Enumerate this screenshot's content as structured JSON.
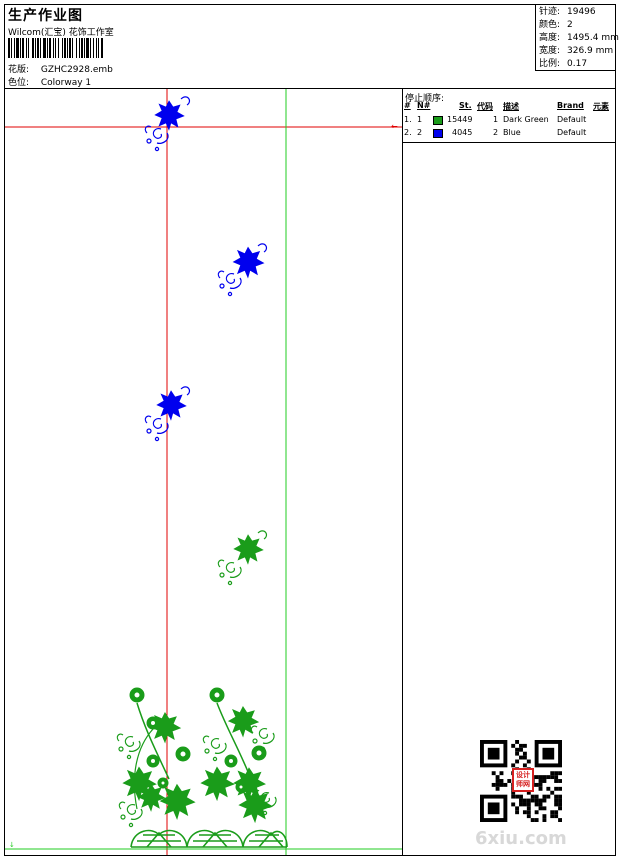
{
  "header": {
    "title": "生产作业图",
    "company": "Wilcom(汇宝) 花饰工作室",
    "design_label": "花版:",
    "design_value": "GZHC2928.emb",
    "colorway_label": "色位:",
    "colorway_value": "Colorway 1"
  },
  "stats": [
    {
      "label": "针迹:",
      "value": "19496"
    },
    {
      "label": "颜色:",
      "value": "2"
    },
    {
      "label": "高度:",
      "value": "1495.4 mm"
    },
    {
      "label": "宽度:",
      "value": "326.9 mm"
    },
    {
      "label": "比例:",
      "value": "0.17"
    }
  ],
  "stop_sequence": {
    "title": "停止顺序:",
    "headers": {
      "num": "#",
      "n": "N#",
      "st": "St.",
      "code": "代码",
      "desc": "描述",
      "brand": "Brand",
      "element": "元素"
    },
    "rows": [
      {
        "num": "1.",
        "n": "1",
        "color": "#1a9c1a",
        "st": "15449",
        "code": "1",
        "desc": "Dark Green",
        "brand": "Default"
      },
      {
        "num": "2.",
        "n": "2",
        "color": "#0000ee",
        "st": "4045",
        "code": "2",
        "desc": "Blue",
        "brand": "Default"
      }
    ]
  },
  "colors": {
    "green": "#1a9c1a",
    "blue": "#0000ee",
    "guide_red": "#e00000",
    "guide_green": "#22cc22"
  },
  "seal_text": "设计\n师网",
  "watermark": "6xiu.com"
}
